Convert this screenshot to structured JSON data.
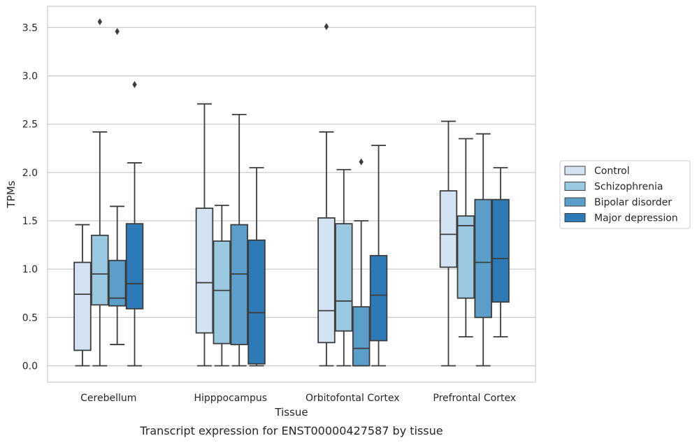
{
  "caption": "Transcript expression for ENST00000427587 by tissue",
  "chart_data": {
    "type": "boxplot",
    "xlabel": "Tissue",
    "ylabel": "TPMs",
    "ylim": [
      -0.17,
      3.72
    ],
    "yticks": [
      0.0,
      0.5,
      1.0,
      1.5,
      2.0,
      2.5,
      3.0,
      3.5
    ],
    "ytick_labels": [
      "0.0",
      "0.5",
      "1.0",
      "1.5",
      "2.0",
      "2.5",
      "3.0",
      "3.5"
    ],
    "categories": [
      "Cerebellum",
      "Hipppocampus",
      "Orbitofontal Cortex",
      "Prefrontal Cortex"
    ],
    "grid": "horizontal",
    "legend_position": "right, outside plot",
    "series": [
      {
        "name": "Control",
        "color": "#d3e3f3",
        "boxes": [
          {
            "whislo": 0.0,
            "q1": 0.16,
            "med": 0.74,
            "q3": 1.07,
            "whishi": 1.46,
            "fliers": []
          },
          {
            "whislo": 0.0,
            "q1": 0.34,
            "med": 0.86,
            "q3": 1.63,
            "whishi": 2.71,
            "fliers": []
          },
          {
            "whislo": 0.0,
            "q1": 0.24,
            "med": 0.57,
            "q3": 1.53,
            "whishi": 2.42,
            "fliers": [
              3.51
            ]
          },
          {
            "whislo": 0.0,
            "q1": 1.02,
            "med": 1.36,
            "q3": 1.81,
            "whishi": 2.53,
            "fliers": []
          }
        ]
      },
      {
        "name": "Schizophrenia",
        "color": "#9ac8e0",
        "boxes": [
          {
            "whislo": 0.0,
            "q1": 0.63,
            "med": 0.95,
            "q3": 1.35,
            "whishi": 2.42,
            "fliers": [
              3.56
            ]
          },
          {
            "whislo": 0.0,
            "q1": 0.23,
            "med": 0.78,
            "q3": 1.29,
            "whishi": 1.66,
            "fliers": []
          },
          {
            "whislo": 0.0,
            "q1": 0.36,
            "med": 0.67,
            "q3": 1.47,
            "whishi": 2.03,
            "fliers": []
          },
          {
            "whislo": 0.3,
            "q1": 0.7,
            "med": 1.45,
            "q3": 1.55,
            "whishi": 2.35,
            "fliers": []
          }
        ]
      },
      {
        "name": "Bipolar disorder",
        "color": "#5a9ec9",
        "boxes": [
          {
            "whislo": 0.22,
            "q1": 0.62,
            "med": 0.7,
            "q3": 1.09,
            "whishi": 1.65,
            "fliers": [
              3.46
            ]
          },
          {
            "whislo": 0.0,
            "q1": 0.22,
            "med": 0.95,
            "q3": 1.46,
            "whishi": 2.6,
            "fliers": []
          },
          {
            "whislo": 0.0,
            "q1": 0.0,
            "med": 0.18,
            "q3": 0.61,
            "whishi": 1.5,
            "fliers": [
              2.11
            ]
          },
          {
            "whislo": 0.0,
            "q1": 0.5,
            "med": 1.07,
            "q3": 1.72,
            "whishi": 2.4,
            "fliers": []
          }
        ]
      },
      {
        "name": "Major depression",
        "color": "#2e7ab6",
        "boxes": [
          {
            "whislo": 0.0,
            "q1": 0.59,
            "med": 0.85,
            "q3": 1.47,
            "whishi": 2.1,
            "fliers": [
              2.91
            ]
          },
          {
            "whislo": 0.0,
            "q1": 0.02,
            "med": 0.55,
            "q3": 1.3,
            "whishi": 2.05,
            "fliers": []
          },
          {
            "whislo": 0.0,
            "q1": 0.26,
            "med": 0.73,
            "q3": 1.14,
            "whishi": 2.28,
            "fliers": []
          },
          {
            "whislo": 0.3,
            "q1": 0.66,
            "med": 1.11,
            "q3": 1.72,
            "whishi": 2.05,
            "fliers": []
          }
        ]
      }
    ]
  }
}
